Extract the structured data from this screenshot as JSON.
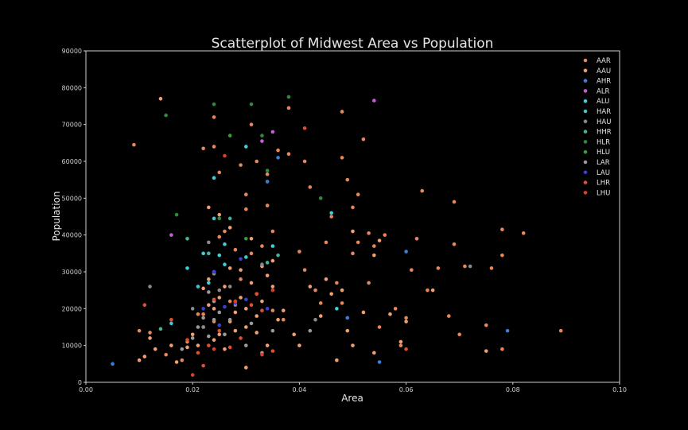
{
  "chart_data": {
    "type": "scatter",
    "title": "Scatterplot of Midwest Area vs Population",
    "xlabel": "Area",
    "ylabel": "Population",
    "xlim": [
      0.0,
      0.1
    ],
    "ylim": [
      0,
      90000
    ],
    "xticks": [
      "0.00",
      "0.02",
      "0.04",
      "0.06",
      "0.08",
      "0.10"
    ],
    "yticks": [
      "0",
      "10000",
      "20000",
      "30000",
      "40000",
      "50000",
      "60000",
      "70000",
      "80000",
      "90000"
    ],
    "grid": false,
    "legend_position": "top-right",
    "series": [
      {
        "name": "AAR",
        "color": "#e8885a",
        "points": [
          [
            0.009,
            64500
          ],
          [
            0.01,
            14000
          ],
          [
            0.012,
            13500
          ],
          [
            0.015,
            7500
          ],
          [
            0.018,
            6000
          ],
          [
            0.019,
            11000
          ],
          [
            0.021,
            18500
          ],
          [
            0.022,
            63500
          ],
          [
            0.022,
            18500
          ],
          [
            0.024,
            72000
          ],
          [
            0.024,
            64000
          ],
          [
            0.024,
            16500
          ],
          [
            0.025,
            57000
          ],
          [
            0.025,
            39500
          ],
          [
            0.026,
            41000
          ],
          [
            0.027,
            22000
          ],
          [
            0.028,
            36000
          ],
          [
            0.029,
            59000
          ],
          [
            0.029,
            28000
          ],
          [
            0.03,
            51000
          ],
          [
            0.03,
            47000
          ],
          [
            0.031,
            70000
          ],
          [
            0.031,
            35000
          ],
          [
            0.032,
            60000
          ],
          [
            0.032,
            24000
          ],
          [
            0.033,
            37000
          ],
          [
            0.034,
            56500
          ],
          [
            0.034,
            48000
          ],
          [
            0.035,
            41000
          ],
          [
            0.035,
            19500
          ],
          [
            0.036,
            63000
          ],
          [
            0.037,
            17000
          ],
          [
            0.038,
            74500
          ],
          [
            0.038,
            62000
          ],
          [
            0.04,
            35500
          ],
          [
            0.041,
            30500
          ],
          [
            0.041,
            60000
          ],
          [
            0.042,
            53000
          ],
          [
            0.043,
            25000
          ],
          [
            0.044,
            21500
          ],
          [
            0.045,
            38000
          ],
          [
            0.046,
            45000
          ],
          [
            0.047,
            27000
          ],
          [
            0.048,
            61000
          ],
          [
            0.048,
            73500
          ],
          [
            0.048,
            21500
          ],
          [
            0.049,
            55000
          ],
          [
            0.05,
            35000
          ],
          [
            0.05,
            47500
          ],
          [
            0.051,
            38000
          ],
          [
            0.051,
            51000
          ],
          [
            0.052,
            66000
          ],
          [
            0.053,
            40500
          ],
          [
            0.053,
            27000
          ],
          [
            0.054,
            37000
          ],
          [
            0.055,
            15000
          ],
          [
            0.056,
            40000
          ],
          [
            0.058,
            20000
          ],
          [
            0.059,
            10000
          ],
          [
            0.06,
            17500
          ],
          [
            0.061,
            30500
          ],
          [
            0.062,
            39000
          ],
          [
            0.063,
            52000
          ],
          [
            0.064,
            25000
          ],
          [
            0.066,
            31000
          ],
          [
            0.068,
            18000
          ],
          [
            0.069,
            49000
          ],
          [
            0.069,
            37500
          ],
          [
            0.07,
            13000
          ],
          [
            0.071,
            31500
          ],
          [
            0.075,
            15500
          ],
          [
            0.076,
            31000
          ],
          [
            0.078,
            41500
          ],
          [
            0.078,
            34500
          ],
          [
            0.078,
            9000
          ],
          [
            0.082,
            40500
          ],
          [
            0.089,
            14000
          ]
        ]
      },
      {
        "name": "AAU",
        "color": "#f0a070",
        "points": [
          [
            0.01,
            6000
          ],
          [
            0.011,
            7000
          ],
          [
            0.012,
            12000
          ],
          [
            0.013,
            9000
          ],
          [
            0.014,
            77000
          ],
          [
            0.016,
            10000
          ],
          [
            0.017,
            5500
          ],
          [
            0.019,
            9500
          ],
          [
            0.02,
            13000
          ],
          [
            0.021,
            10000
          ],
          [
            0.022,
            15000
          ],
          [
            0.022,
            25500
          ],
          [
            0.023,
            21000
          ],
          [
            0.023,
            28000
          ],
          [
            0.023,
            47500
          ],
          [
            0.024,
            30000
          ],
          [
            0.024,
            20000
          ],
          [
            0.024,
            11500
          ],
          [
            0.025,
            23000
          ],
          [
            0.025,
            13000
          ],
          [
            0.025,
            45500
          ],
          [
            0.026,
            26000
          ],
          [
            0.026,
            9000
          ],
          [
            0.027,
            31000
          ],
          [
            0.027,
            16500
          ],
          [
            0.027,
            42000
          ],
          [
            0.028,
            19000
          ],
          [
            0.028,
            14000
          ],
          [
            0.029,
            30500
          ],
          [
            0.029,
            23000
          ],
          [
            0.03,
            20000
          ],
          [
            0.03,
            15000
          ],
          [
            0.03,
            4000
          ],
          [
            0.031,
            39000
          ],
          [
            0.031,
            27000
          ],
          [
            0.032,
            18000
          ],
          [
            0.032,
            13500
          ],
          [
            0.033,
            31500
          ],
          [
            0.033,
            22000
          ],
          [
            0.034,
            29000
          ],
          [
            0.034,
            10000
          ],
          [
            0.035,
            33000
          ],
          [
            0.035,
            26000
          ],
          [
            0.036,
            17000
          ],
          [
            0.037,
            19500
          ],
          [
            0.039,
            13000
          ],
          [
            0.04,
            10000
          ],
          [
            0.042,
            26000
          ],
          [
            0.044,
            18000
          ],
          [
            0.045,
            28000
          ],
          [
            0.046,
            24000
          ],
          [
            0.047,
            6000
          ],
          [
            0.048,
            25000
          ],
          [
            0.049,
            14000
          ],
          [
            0.05,
            10000
          ],
          [
            0.05,
            41000
          ],
          [
            0.052,
            19000
          ],
          [
            0.054,
            8000
          ],
          [
            0.054,
            34500
          ],
          [
            0.055,
            38500
          ],
          [
            0.057,
            18500
          ],
          [
            0.059,
            11000
          ],
          [
            0.06,
            16500
          ],
          [
            0.065,
            25000
          ],
          [
            0.075,
            8500
          ]
        ]
      },
      {
        "name": "AHR",
        "color": "#3c7fd9",
        "points": [
          [
            0.005,
            5000
          ],
          [
            0.034,
            54500
          ],
          [
            0.036,
            61000
          ],
          [
            0.049,
            17500
          ],
          [
            0.055,
            5500
          ],
          [
            0.06,
            35500
          ],
          [
            0.079,
            14000
          ]
        ]
      },
      {
        "name": "ALR",
        "color": "#c45fd4",
        "points": [
          [
            0.016,
            40000
          ],
          [
            0.033,
            65500
          ],
          [
            0.054,
            76500
          ],
          [
            0.035,
            68000
          ]
        ]
      },
      {
        "name": "ALU",
        "color": "#3fd0d8",
        "points": [
          [
            0.019,
            31000
          ],
          [
            0.022,
            35000
          ],
          [
            0.023,
            27000
          ],
          [
            0.024,
            55500
          ],
          [
            0.025,
            34500
          ],
          [
            0.026,
            37500
          ],
          [
            0.03,
            64000
          ],
          [
            0.035,
            37000
          ],
          [
            0.046,
            46000
          ],
          [
            0.047,
            20000
          ]
        ]
      },
      {
        "name": "HAR",
        "color": "#40c8d0",
        "points": [
          [
            0.016,
            16000
          ],
          [
            0.021,
            26000
          ],
          [
            0.023,
            35000
          ],
          [
            0.024,
            44500
          ],
          [
            0.026,
            32000
          ],
          [
            0.03,
            34000
          ]
        ]
      },
      {
        "name": "HAU",
        "color": "#8a8a8a",
        "points": [
          [
            0.012,
            26000
          ],
          [
            0.02,
            20000
          ],
          [
            0.022,
            15000
          ],
          [
            0.023,
            38000
          ],
          [
            0.024,
            29500
          ],
          [
            0.025,
            25000
          ],
          [
            0.027,
            26000
          ],
          [
            0.028,
            21000
          ],
          [
            0.033,
            32000
          ],
          [
            0.043,
            17000
          ],
          [
            0.072,
            31500
          ]
        ]
      },
      {
        "name": "HHR",
        "color": "#4ab098",
        "points": [
          [
            0.014,
            14500
          ],
          [
            0.019,
            39000
          ],
          [
            0.023,
            35000
          ],
          [
            0.027,
            44500
          ],
          [
            0.034,
            32500
          ],
          [
            0.036,
            34500
          ]
        ]
      },
      {
        "name": "HLR",
        "color": "#2e8b3a",
        "points": [
          [
            0.015,
            72500
          ],
          [
            0.017,
            45500
          ],
          [
            0.024,
            75500
          ],
          [
            0.025,
            44500
          ],
          [
            0.031,
            75500
          ],
          [
            0.033,
            67000
          ],
          [
            0.034,
            57500
          ],
          [
            0.038,
            77500
          ],
          [
            0.044,
            50000
          ]
        ]
      },
      {
        "name": "HLU",
        "color": "#3a9a3a",
        "points": [
          [
            0.027,
            67000
          ],
          [
            0.03,
            39000
          ]
        ]
      },
      {
        "name": "LAR",
        "color": "#9a9a9a",
        "points": [
          [
            0.018,
            9000
          ],
          [
            0.02,
            12000
          ],
          [
            0.021,
            15000
          ],
          [
            0.022,
            17500
          ],
          [
            0.023,
            24500
          ],
          [
            0.023,
            12500
          ],
          [
            0.024,
            22000
          ],
          [
            0.024,
            17000
          ],
          [
            0.025,
            19000
          ],
          [
            0.026,
            13000
          ],
          [
            0.027,
            17000
          ],
          [
            0.028,
            22000
          ],
          [
            0.03,
            10000
          ],
          [
            0.031,
            16000
          ],
          [
            0.033,
            8000
          ],
          [
            0.035,
            14000
          ],
          [
            0.042,
            14000
          ]
        ]
      },
      {
        "name": "LAU",
        "color": "#3a40d8",
        "points": [
          [
            0.022,
            20000
          ],
          [
            0.024,
            30000
          ],
          [
            0.025,
            15500
          ],
          [
            0.026,
            20500
          ],
          [
            0.028,
            21500
          ],
          [
            0.029,
            33500
          ],
          [
            0.03,
            22500
          ],
          [
            0.034,
            20000
          ]
        ]
      },
      {
        "name": "LHR",
        "color": "#e05030",
        "points": [
          [
            0.011,
            21000
          ],
          [
            0.016,
            17000
          ],
          [
            0.019,
            11500
          ],
          [
            0.021,
            8000
          ],
          [
            0.022,
            4500
          ],
          [
            0.023,
            10000
          ],
          [
            0.024,
            22500
          ],
          [
            0.025,
            14000
          ],
          [
            0.027,
            9500
          ],
          [
            0.029,
            12000
          ],
          [
            0.031,
            21000
          ],
          [
            0.032,
            24000
          ],
          [
            0.033,
            19500
          ],
          [
            0.035,
            8500
          ],
          [
            0.041,
            69000
          ],
          [
            0.06,
            9000
          ]
        ]
      },
      {
        "name": "LHU",
        "color": "#d8402c",
        "points": [
          [
            0.02,
            2000
          ],
          [
            0.024,
            9000
          ],
          [
            0.026,
            61500
          ],
          [
            0.028,
            22000
          ],
          [
            0.033,
            7500
          ],
          [
            0.035,
            25000
          ]
        ]
      }
    ]
  }
}
